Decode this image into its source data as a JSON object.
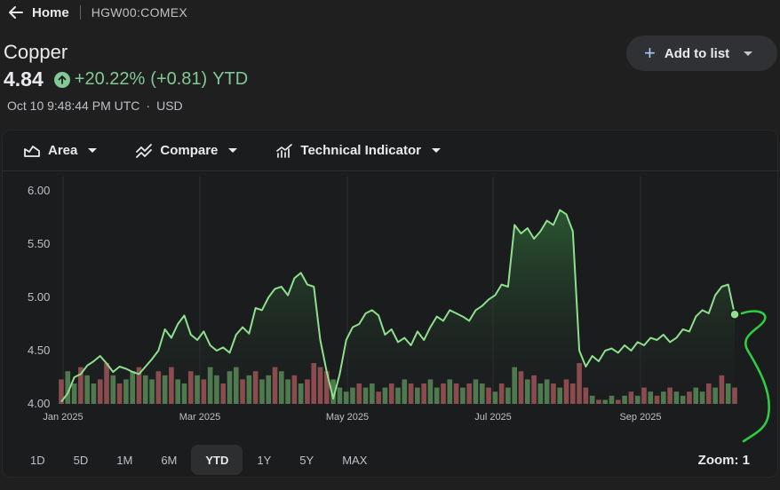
{
  "header": {
    "home_label": "Home",
    "ticker": "HGW00:COMEX"
  },
  "quote": {
    "name": "Copper",
    "price": "4.84",
    "change_pct": "+20.22%",
    "change_abs": "(+0.81)",
    "period": "YTD",
    "timestamp": "Oct 10 9:48:44 PM UTC",
    "currency": "USD"
  },
  "actions": {
    "add_to_list": "Add to list"
  },
  "toolbar": {
    "chart_type": "Area",
    "compare": "Compare",
    "indicator": "Technical Indicator"
  },
  "ranges": [
    "1D",
    "5D",
    "1M",
    "6M",
    "YTD",
    "1Y",
    "5Y",
    "MAX"
  ],
  "active_range": "YTD",
  "zoom_label": "Zoom: 1",
  "colors": {
    "line": "#8ee08e",
    "volume_up": "#4f7a4f",
    "volume_down": "#8a4c4f",
    "accent": "#a8c7fa",
    "positive": "#81c995"
  },
  "chart_data": {
    "type": "area",
    "ylim": [
      4.0,
      6.0
    ],
    "yticks": [
      "4.00",
      "4.50",
      "5.00",
      "5.50",
      "6.00"
    ],
    "xticks": [
      "Jan 2025",
      "Mar 2025",
      "May 2025",
      "Jul 2025",
      "Sep 2025"
    ],
    "grid": true,
    "series": [
      {
        "values": [
          4.02,
          4.1,
          4.25,
          4.28,
          4.36,
          4.4,
          4.45,
          4.38,
          4.3,
          4.35,
          4.33,
          4.3,
          4.28,
          4.35,
          4.42,
          4.5,
          4.7,
          4.62,
          4.75,
          4.83,
          4.65,
          4.6,
          4.68,
          4.55,
          4.5,
          4.53,
          4.48,
          4.65,
          4.72,
          4.66,
          4.9,
          4.88,
          5.0,
          5.08,
          5.1,
          5.02,
          5.18,
          5.23,
          5.12,
          5.1,
          4.6,
          4.3,
          4.05,
          4.28,
          4.6,
          4.72,
          4.75,
          4.85,
          4.88,
          4.83,
          4.65,
          4.7,
          4.58,
          4.62,
          4.55,
          4.68,
          4.6,
          4.72,
          4.82,
          4.78,
          4.88,
          4.85,
          4.82,
          4.78,
          4.88,
          4.92,
          4.98,
          5.02,
          5.12,
          5.1,
          5.68,
          5.6,
          5.65,
          5.55,
          5.62,
          5.72,
          5.68,
          5.82,
          5.78,
          5.62,
          4.5,
          4.35,
          4.45,
          4.4,
          4.5,
          4.52,
          4.48,
          4.55,
          4.5,
          4.58,
          4.55,
          4.62,
          4.6,
          4.65,
          4.58,
          4.62,
          4.7,
          4.68,
          4.82,
          4.88,
          4.85,
          5.02,
          5.1,
          5.12,
          4.84
        ]
      }
    ],
    "volume": {
      "values": [
        0.6,
        0.8,
        0.5,
        0.9,
        0.7,
        0.5,
        0.6,
        1.0,
        0.7,
        0.5,
        0.6,
        0.8,
        0.9,
        0.7,
        0.6,
        0.8,
        0.7,
        0.9,
        0.6,
        0.5,
        0.8,
        0.7,
        0.6,
        0.9,
        0.7,
        0.5,
        0.8,
        0.9,
        0.6,
        0.7,
        0.8,
        0.6,
        0.7,
        0.9,
        0.8,
        0.6,
        0.7,
        0.5,
        0.6,
        1.0,
        0.9,
        0.8,
        0.6,
        0.4,
        0.3,
        0.4,
        0.5,
        0.4,
        0.5,
        0.3,
        0.4,
        0.5,
        0.4,
        0.6,
        0.5,
        0.4,
        0.5,
        0.6,
        0.4,
        0.5,
        0.6,
        0.5,
        0.4,
        0.5,
        0.6,
        0.5,
        0.4,
        0.3,
        0.5,
        0.4,
        0.9,
        0.8,
        0.6,
        0.7,
        0.5,
        0.6,
        0.5,
        0.4,
        0.6,
        0.5,
        1.0,
        0.4,
        0.2,
        0.1,
        0.1,
        0.2,
        0.1,
        0.2,
        0.3,
        0.2,
        0.4,
        0.3,
        0.2,
        0.3,
        0.4,
        0.3,
        0.2,
        0.3,
        0.4,
        0.3,
        0.5,
        0.4,
        0.7,
        0.5,
        0.4
      ],
      "direction": [
        "d",
        "u",
        "u",
        "d",
        "u",
        "u",
        "d",
        "d",
        "u",
        "d",
        "u",
        "u",
        "d",
        "u",
        "u",
        "d",
        "u",
        "d",
        "u",
        "u",
        "d",
        "u",
        "d",
        "u",
        "u",
        "d",
        "u",
        "u",
        "d",
        "u",
        "d",
        "u",
        "u",
        "d",
        "u",
        "u",
        "d",
        "u",
        "d",
        "d",
        "d",
        "d",
        "u",
        "u",
        "u",
        "u",
        "d",
        "u",
        "u",
        "d",
        "u",
        "d",
        "u",
        "u",
        "d",
        "u",
        "d",
        "u",
        "u",
        "d",
        "u",
        "d",
        "u",
        "d",
        "u",
        "u",
        "d",
        "u",
        "d",
        "u",
        "u",
        "d",
        "u",
        "d",
        "u",
        "u",
        "d",
        "u",
        "d",
        "d",
        "d",
        "d",
        "u",
        "d",
        "u",
        "u",
        "d",
        "u",
        "d",
        "u",
        "d",
        "u",
        "d",
        "u",
        "d",
        "u",
        "u",
        "d",
        "u",
        "u",
        "d",
        "u",
        "d",
        "u",
        "d"
      ]
    }
  }
}
